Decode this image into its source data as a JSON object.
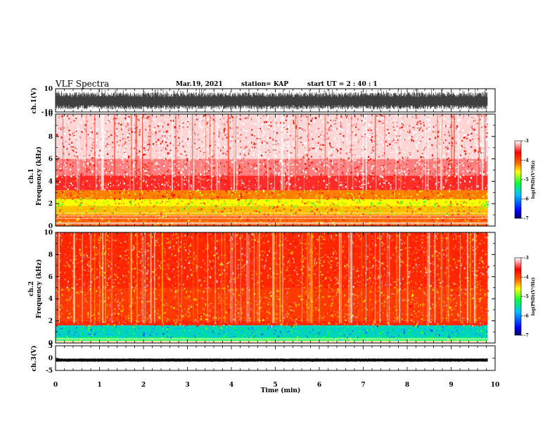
{
  "header": {
    "title": "VLF Spectra",
    "date": "Mar.19, 2021",
    "station": "station= KAP",
    "start_ut": "start  UT =   2 : 40 : 1"
  },
  "colorbar": {
    "label": "log(PSD)(V²/Hz)",
    "ticks": [
      "-3",
      "-4",
      "-5",
      "-6",
      "-7"
    ],
    "range": [
      -7,
      -3
    ],
    "colors": [
      "#000060",
      "#0000ff",
      "#00c0ff",
      "#00ff40",
      "#ffff00",
      "#ff6000",
      "#ff0000",
      "#ffffff"
    ]
  },
  "chart_data": [
    {
      "type": "line",
      "panel": "ch.1 waveform",
      "ylabel": "ch.1(V)",
      "ylim": [
        -10,
        10
      ],
      "y_ticks": [
        "10",
        "-10"
      ],
      "xlim": [
        0,
        10
      ],
      "description_values": {
        "typical_low": -8,
        "typical_high": 7
      }
    },
    {
      "type": "heatmap",
      "panel": "ch.1 spectrogram",
      "ylabel": "ch.1 Frequency (kHz)",
      "ylim": [
        0,
        10
      ],
      "y_ticks": [
        "0",
        "2",
        "4",
        "6",
        "8",
        "10"
      ],
      "xlim": [
        0,
        10
      ],
      "data_end_min": 9.83,
      "bands": [
        {
          "f_low": 0,
          "f_high": 0.2,
          "log_psd": -4.0
        },
        {
          "f_low": 0.2,
          "f_high": 1.0,
          "log_psd": -4.1
        },
        {
          "f_low": 1.0,
          "f_high": 1.8,
          "log_psd": -4.4
        },
        {
          "f_low": 1.8,
          "f_high": 2.4,
          "log_psd": -4.6
        },
        {
          "f_low": 2.4,
          "f_high": 3.2,
          "log_psd": -4.2
        },
        {
          "f_low": 3.2,
          "f_high": 4.5,
          "log_psd": -3.5
        },
        {
          "f_low": 4.5,
          "f_high": 6.0,
          "log_psd": -3.3
        },
        {
          "f_low": 6.0,
          "f_high": 10.0,
          "log_psd": -3.1
        }
      ]
    },
    {
      "type": "heatmap",
      "panel": "ch.2 spectrogram",
      "ylabel": "ch.2 Frequency (kHz)",
      "ylim": [
        0,
        10
      ],
      "y_ticks": [
        "0",
        "2",
        "4",
        "6",
        "8",
        "10"
      ],
      "xlim": [
        0,
        10
      ],
      "data_end_min": 9.83,
      "bands": [
        {
          "f_low": 0,
          "f_high": 0.2,
          "log_psd": -4.3
        },
        {
          "f_low": 0.2,
          "f_high": 0.5,
          "log_psd": -5.2
        },
        {
          "f_low": 0.5,
          "f_high": 1.6,
          "log_psd": -5.6
        },
        {
          "f_low": 1.6,
          "f_high": 2.0,
          "log_psd": -3.8
        },
        {
          "f_low": 2.0,
          "f_high": 5.0,
          "log_psd": -3.9
        },
        {
          "f_low": 5.0,
          "f_high": 10.0,
          "log_psd": -3.8
        }
      ]
    },
    {
      "type": "line",
      "panel": "ch.3 waveform",
      "ylabel": "ch.3(V)",
      "ylim": [
        -5,
        5
      ],
      "y_ticks": [
        "5",
        "0",
        "-5"
      ],
      "xlim": [
        0,
        10
      ],
      "description_values": {
        "center": -0.8,
        "amplitude": 0.7
      }
    }
  ],
  "xaxis": {
    "label": "Time (min)",
    "ticks": [
      "0",
      "1",
      "2",
      "3",
      "4",
      "5",
      "6",
      "7",
      "8",
      "9",
      "10"
    ]
  }
}
